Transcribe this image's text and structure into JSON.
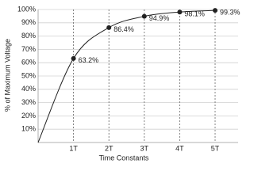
{
  "chart_data": {
    "type": "line",
    "xlabel": "Time Constants",
    "ylabel": "% of Maximum Voltage",
    "x": [
      0,
      1,
      2,
      3,
      4,
      5
    ],
    "series": [
      {
        "color": "#222222",
        "values": [
          0,
          63.2,
          86.4,
          94.9,
          98.1,
          99.3
        ],
        "value_labels": [
          null,
          "63.2%",
          "86.4%",
          "94.9%",
          "98.1%",
          "99.3%"
        ]
      }
    ],
    "xlim": [
      0,
      5.65
    ],
    "ylim": [
      0,
      100
    ],
    "xticks": [
      {
        "value": 1,
        "label": "1T"
      },
      {
        "value": 2,
        "label": "2T"
      },
      {
        "value": 3,
        "label": "3T"
      },
      {
        "value": 4,
        "label": "4T"
      },
      {
        "value": 5,
        "label": "5T"
      }
    ],
    "yticks": [
      {
        "value": 10,
        "label": "10%"
      },
      {
        "value": 20,
        "label": "20%"
      },
      {
        "value": 30,
        "label": "30%"
      },
      {
        "value": 40,
        "label": "40%"
      },
      {
        "value": 50,
        "label": "50%"
      },
      {
        "value": 60,
        "label": "60%"
      },
      {
        "value": 70,
        "label": "70%"
      },
      {
        "value": 80,
        "label": "80%"
      },
      {
        "value": 90,
        "label": "90%"
      },
      {
        "value": 100,
        "label": "100%"
      }
    ],
    "grid": true
  }
}
